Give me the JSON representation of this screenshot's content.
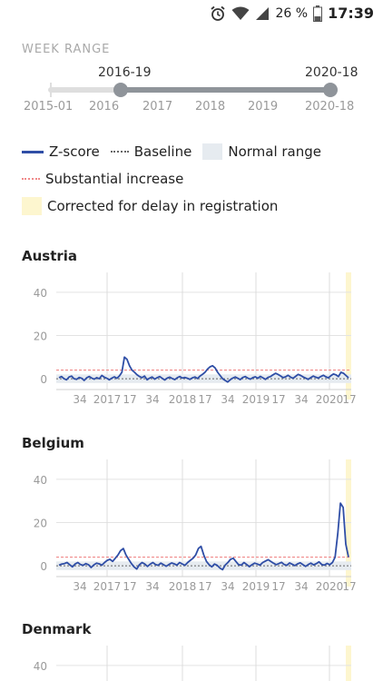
{
  "status_bar": {
    "battery": "26 %",
    "time": "17:39",
    "icons": [
      "alarm-icon",
      "wifi-icon",
      "signal-icon",
      "battery-icon"
    ]
  },
  "week_range": {
    "label": "WEEK RANGE",
    "selected_start": "2016-19",
    "selected_end": "2020-18",
    "min_label": "2015-01",
    "max_label": "2020-18",
    "year_ticks": [
      "2016",
      "2017",
      "2018",
      "2019"
    ],
    "selection_start_fraction": 0.24,
    "selection_end_fraction": 1.0
  },
  "legend": {
    "zscore": "Z-score",
    "baseline": "Baseline",
    "normal_range": "Normal range",
    "substantial_increase": "Substantial increase",
    "corrected": "Corrected for delay in registration"
  },
  "colors": {
    "zscore": "#2f4ea6",
    "baseline": "#666666",
    "normal_range": "#e6ebf0",
    "substantial": "#f08a8a",
    "corrected": "#fdf6cf",
    "slider": "#8f949a"
  },
  "chart_data": [
    {
      "type": "line",
      "title": "Austria",
      "ylim": [
        -5,
        45
      ],
      "yticks": [
        0,
        20,
        40
      ],
      "xtick_labels": [
        "34",
        "2017",
        "17",
        "34",
        "2018",
        "17",
        "34",
        "2019",
        "17",
        "34",
        "2020",
        "17"
      ],
      "baseline": 0,
      "substantial_threshold": 4,
      "normal_range": [
        -2,
        2
      ],
      "series": [
        {
          "values": [
            0.5,
            1,
            0,
            -0.5,
            0.8,
            1.2,
            0,
            -0.3,
            0.6,
            0.2,
            -0.8,
            0.4,
            1,
            0.3,
            -0.2,
            0.5,
            0,
            1.5,
            0.7,
            0.2,
            -0.5,
            0.3,
            0.9,
            0.2,
            1.3,
            3,
            10,
            9,
            6,
            4,
            3,
            1.8,
            1,
            0.5,
            1.2,
            -0.5,
            0.3,
            0.8,
            -0.2,
            0.5,
            1,
            0.2,
            -0.6,
            0.3,
            0.7,
            0.1,
            -0.4,
            0.5,
            1,
            0.3,
            0.6,
            0.2,
            -0.3,
            0.4,
            0.8,
            0.1,
            1.2,
            2,
            3,
            4.5,
            5.5,
            6,
            5,
            3,
            1.5,
            0,
            -0.8,
            -1.5,
            -0.5,
            0.3,
            0.8,
            0.2,
            -0.4,
            0.6,
            1,
            0.3,
            -0.2,
            0.5,
            0.9,
            0.2,
            1.1,
            0.4,
            -0.3,
            0.6,
            1,
            1.8,
            2.5,
            2,
            1.3,
            0.5,
            0.9,
            1.6,
            0.7,
            0.2,
            1.1,
            2,
            1.5,
            0.8,
            0.3,
            -0.3,
            0.5,
            1.2,
            0.7,
            0.3,
            1,
            1.6,
            0.9,
            0.4,
            1.4,
            2.2,
            1.8,
            1,
            3,
            2.5,
            1.5,
            0.4
          ]
        }
      ]
    },
    {
      "type": "line",
      "title": "Belgium",
      "ylim": [
        -5,
        45
      ],
      "yticks": [
        0,
        20,
        40
      ],
      "xtick_labels": [
        "34",
        "2017",
        "17",
        "34",
        "2018",
        "17",
        "34",
        "2019",
        "17",
        "34",
        "2020",
        "17"
      ],
      "baseline": 0,
      "substantial_threshold": 4,
      "normal_range": [
        -2,
        2
      ],
      "series": [
        {
          "values": [
            0.3,
            0.8,
            1,
            1.5,
            0.5,
            -0.5,
            0.8,
            1.5,
            0.6,
            0.2,
            1,
            0.5,
            -0.8,
            0.4,
            1.2,
            0.9,
            0.3,
            1.5,
            2.5,
            3,
            2,
            3.5,
            5,
            7,
            8,
            5,
            3,
            1,
            -0.5,
            -1.5,
            0.5,
            1.5,
            0.8,
            -0.3,
            0.7,
            1.5,
            0.6,
            0.2,
            1.2,
            0.5,
            -0.2,
            0.6,
            1.3,
            0.9,
            0.3,
            1.5,
            0.8,
            0.2,
            1.5,
            2.5,
            3.5,
            5,
            8,
            9,
            5,
            2,
            0.5,
            -0.5,
            0.8,
            0.2,
            -1,
            -1.8,
            0.3,
            1.5,
            3,
            3.5,
            2,
            0.5,
            0.3,
            1.5,
            0.6,
            -0.4,
            0.5,
            1.2,
            0.8,
            0.3,
            1.5,
            2.2,
            2.8,
            2,
            1.2,
            0.5,
            1,
            1.6,
            0.6,
            0.2,
            1.3,
            0.7,
            0.1,
            0.9,
            1.4,
            0.5,
            -0.3,
            0.6,
            1.2,
            0.4,
            1,
            1.8,
            0.6,
            0.3,
            1.1,
            0.5,
            1.5,
            4,
            15,
            29,
            27,
            10,
            4
          ]
        }
      ]
    },
    {
      "type": "line",
      "title": "Denmark",
      "ylim": [
        -5,
        45
      ],
      "yticks": [
        40
      ],
      "series": []
    }
  ]
}
